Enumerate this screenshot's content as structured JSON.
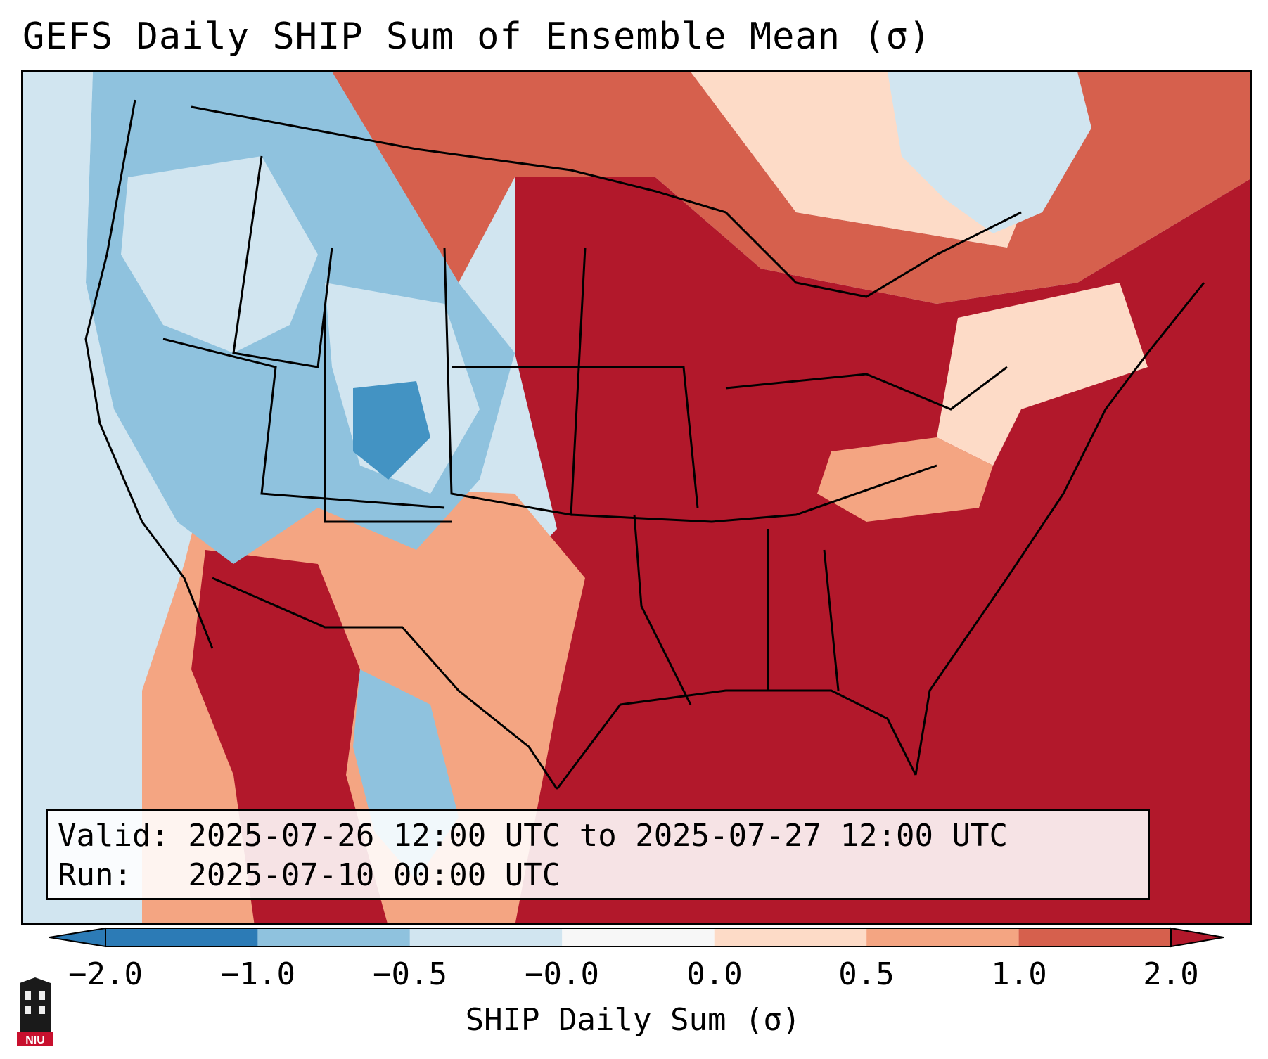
{
  "title": "GEFS Daily SHIP Sum of Ensemble Mean (σ)",
  "info": {
    "valid_line": "Valid: 2025-07-26 12:00 UTC to 2025-07-27 12:00 UTC",
    "run_line": "Run:   2025-07-10 00:00 UTC"
  },
  "colorbar": {
    "label": "SHIP Daily Sum (σ)",
    "ticks": [
      "−2.0",
      "−1.0",
      "−0.5",
      "−0.0",
      "0.0",
      "0.5",
      "1.0",
      "2.0"
    ],
    "colors": [
      "#2c7bb6",
      "#8fc2de",
      "#d1e5f0",
      "#f7f7f7",
      "#fddbc7",
      "#f4a582",
      "#d6604d",
      "#b2182b"
    ]
  },
  "logo": {
    "text": "NIU",
    "icon": "niu-building-icon"
  },
  "map": {
    "regions": [
      "pacific-northwest-negative",
      "southwest-negative",
      "plains-positive",
      "southeast-positive",
      "gulf-positive"
    ]
  }
}
